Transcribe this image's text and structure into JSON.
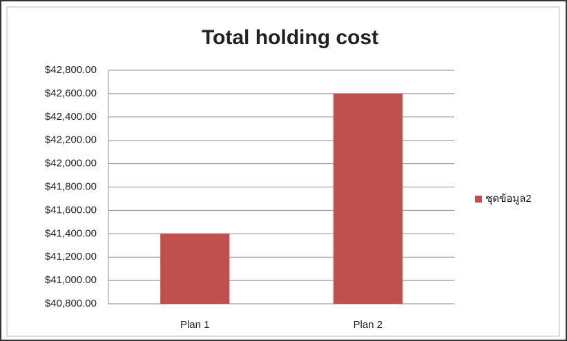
{
  "chart_data": {
    "type": "bar",
    "title": "Total holding cost",
    "categories": [
      "Plan 1",
      "Plan 2"
    ],
    "series": [
      {
        "name": "ชุดข้อมูล2",
        "color": "#c0504d",
        "values": [
          41400,
          42600
        ]
      }
    ],
    "ylim": [
      40800,
      42800
    ],
    "yticks": [
      {
        "value": 40800,
        "label": "$40,800.00"
      },
      {
        "value": 41000,
        "label": "$41,000.00"
      },
      {
        "value": 41200,
        "label": "$41,200.00"
      },
      {
        "value": 41400,
        "label": "$41,400.00"
      },
      {
        "value": 41600,
        "label": "$41,600.00"
      },
      {
        "value": 41800,
        "label": "$41,800.00"
      },
      {
        "value": 42000,
        "label": "$42,000.00"
      },
      {
        "value": 42200,
        "label": "$42,200.00"
      },
      {
        "value": 42400,
        "label": "$42,400.00"
      },
      {
        "value": 42600,
        "label": "$42,600.00"
      },
      {
        "value": 42800,
        "label": "$42,800.00"
      }
    ],
    "grid": true,
    "legend": "right"
  }
}
